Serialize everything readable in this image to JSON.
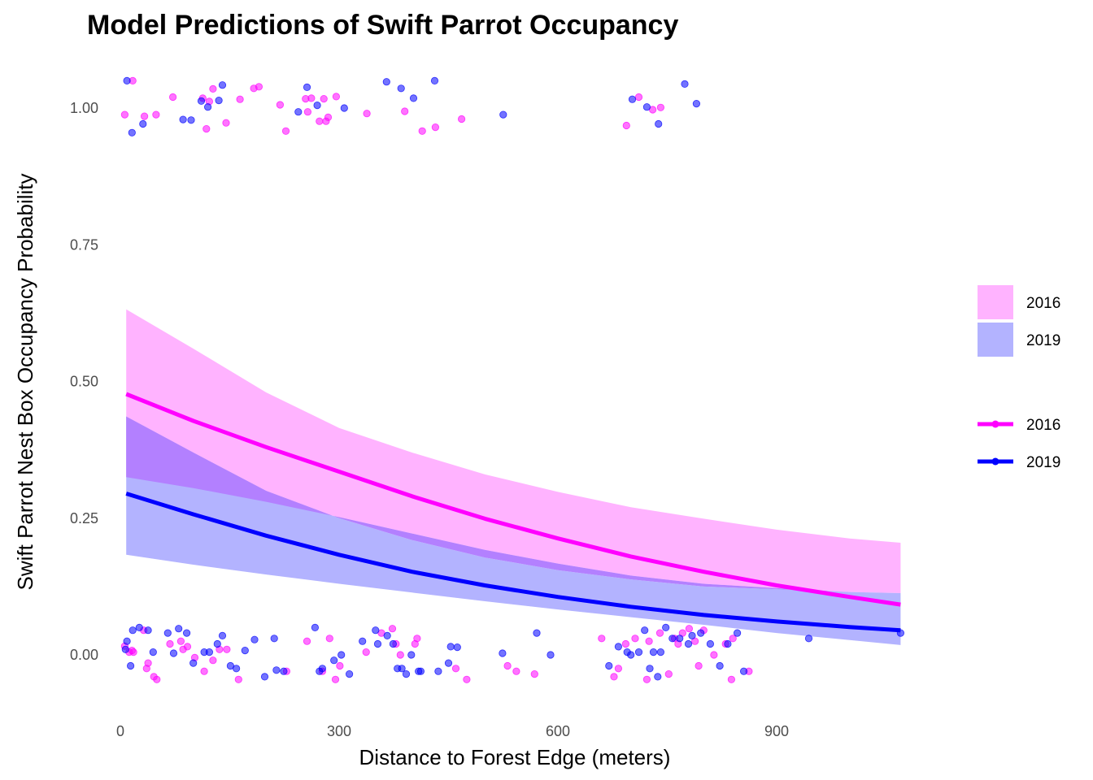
{
  "chart_data": {
    "type": "line",
    "title": "Model Predictions of Swift Parrot Occupancy",
    "xlabel": "Distance to Forest Edge (meters)",
    "ylabel": "Swift Parrot Nest Box Occupancy Probability",
    "xlim": [
      -10,
      1085
    ],
    "ylim": [
      -0.1,
      1.08
    ],
    "x_ticks": [
      0,
      300,
      600,
      900
    ],
    "x_tick_labels": [
      "0",
      "300",
      "600",
      "900"
    ],
    "y_ticks": [
      0,
      0.25,
      0.5,
      0.75,
      1.0
    ],
    "y_tick_labels": [
      "0.00",
      "0.25",
      "0.50",
      "0.75",
      "1.00"
    ],
    "grid": false,
    "legend_position": "right",
    "colors": {
      "2016_line": "#ff00ff",
      "2019_line": "#0000ff",
      "2016_band": "#ffb3ff",
      "2019_band": "#b3b3ff",
      "overlap_band": "#b380ff"
    },
    "legend": {
      "band_items": [
        {
          "label": "2016",
          "color": "#ffb3ff"
        },
        {
          "label": "2019",
          "color": "#b3b3ff"
        }
      ],
      "line_items": [
        {
          "label": "2016",
          "color": "#ff00ff"
        },
        {
          "label": "2019",
          "color": "#0000ff"
        }
      ]
    },
    "series": [
      {
        "name": "2016",
        "x": [
          8,
          100,
          200,
          300,
          400,
          500,
          600,
          700,
          800,
          900,
          1000,
          1070
        ],
        "y": [
          0.477,
          0.428,
          0.38,
          0.335,
          0.29,
          0.249,
          0.213,
          0.18,
          0.152,
          0.127,
          0.106,
          0.092
        ],
        "lower": [
          0.325,
          0.305,
          0.28,
          0.252,
          0.222,
          0.192,
          0.167,
          0.145,
          0.13,
          0.122,
          0.115,
          0.113
        ],
        "upper": [
          0.632,
          0.56,
          0.48,
          0.415,
          0.37,
          0.33,
          0.298,
          0.27,
          0.249,
          0.229,
          0.213,
          0.205
        ]
      },
      {
        "name": "2019",
        "x": [
          8,
          100,
          200,
          300,
          400,
          500,
          600,
          700,
          800,
          900,
          1000,
          1070
        ],
        "y": [
          0.295,
          0.257,
          0.218,
          0.183,
          0.152,
          0.127,
          0.106,
          0.088,
          0.073,
          0.061,
          0.051,
          0.045
        ],
        "lower": [
          0.183,
          0.165,
          0.147,
          0.13,
          0.114,
          0.098,
          0.083,
          0.069,
          0.055,
          0.04,
          0.027,
          0.018
        ],
        "upper": [
          0.436,
          0.37,
          0.3,
          0.25,
          0.21,
          0.178,
          0.155,
          0.138,
          0.125,
          0.12,
          0.115,
          0.113
        ]
      }
    ],
    "points": [
      {
        "year": "2016",
        "x": [
          6,
          17,
          33,
          49,
          72,
          113,
          118,
          122,
          127,
          145,
          164,
          183,
          190,
          219,
          227,
          254,
          257,
          262,
          273,
          279,
          282,
          285,
          296,
          338,
          390,
          414,
          432,
          468,
          694,
          711,
          730,
          741
        ],
        "y": [
          0.988,
          1.05,
          0.985,
          0.988,
          1.02,
          1.018,
          0.962,
          1.012,
          1.035,
          0.973,
          1.016,
          1.036,
          1.039,
          1.006,
          0.958,
          1.017,
          0.993,
          1.018,
          0.976,
          1.017,
          0.976,
          0.983,
          1.021,
          0.99,
          0.994,
          0.958,
          0.965,
          0.98,
          0.968,
          1.02,
          0.997,
          1.001
        ]
      },
      {
        "year": "2019",
        "x": [
          9,
          16,
          31,
          86,
          97,
          111,
          120,
          135,
          140,
          244,
          256,
          270,
          307,
          365,
          385,
          402,
          431,
          525,
          702,
          722,
          738,
          774,
          790
        ],
        "y": [
          1.05,
          0.955,
          0.971,
          0.979,
          0.978,
          1.013,
          1.002,
          1.014,
          1.042,
          0.993,
          1.038,
          1.005,
          1.0,
          1.048,
          1.036,
          1.018,
          1.05,
          0.988,
          1.016,
          1.002,
          0.971,
          1.044,
          1.008
        ]
      },
      {
        "year": "2016",
        "x": [
          6,
          12,
          16,
          18,
          32,
          36,
          38,
          46,
          50,
          68,
          83,
          86,
          92,
          102,
          115,
          127,
          136,
          146,
          162,
          228,
          256,
          277,
          287,
          295,
          301,
          337,
          358,
          373,
          378,
          384,
          404,
          407,
          460,
          475,
          531,
          543,
          568,
          660,
          677,
          683,
          693,
          706,
          722,
          725,
          740,
          752,
          760,
          765,
          771,
          780,
          788,
          793,
          800,
          814,
          830,
          838,
          840,
          862
        ],
        "y": [
          0.016,
          0.005,
          0.008,
          0.005,
          0.045,
          -0.025,
          -0.015,
          -0.04,
          -0.045,
          0.02,
          0.025,
          0.01,
          0.015,
          -0.005,
          -0.03,
          -0.01,
          0.01,
          0.01,
          -0.045,
          -0.03,
          0.025,
          -0.03,
          0.03,
          -0.045,
          -0.02,
          0.005,
          0.04,
          0.048,
          0.02,
          0.0,
          0.02,
          0.03,
          -0.025,
          -0.045,
          -0.02,
          -0.03,
          -0.035,
          0.03,
          -0.04,
          -0.025,
          0.02,
          0.03,
          -0.045,
          0.025,
          0.04,
          -0.035,
          0.03,
          0.02,
          0.04,
          0.048,
          0.025,
          -0.02,
          0.045,
          0.0,
          0.02,
          -0.045,
          0.03,
          -0.03
        ]
      },
      {
        "year": "2019",
        "x": [
          7,
          9,
          14,
          17,
          26,
          38,
          45,
          65,
          73,
          80,
          91,
          100,
          115,
          122,
          133,
          140,
          151,
          159,
          171,
          184,
          198,
          211,
          214,
          224,
          267,
          273,
          277,
          293,
          303,
          314,
          332,
          350,
          353,
          366,
          374,
          380,
          386,
          392,
          399,
          409,
          412,
          436,
          450,
          453,
          462,
          524,
          571,
          590,
          670,
          683,
          695,
          700,
          711,
          719,
          726,
          731,
          737,
          741,
          748,
          757,
          767,
          779,
          784,
          796,
          809,
          822,
          833,
          846,
          855,
          944,
          1070
        ],
        "y": [
          0.01,
          0.025,
          -0.02,
          0.045,
          0.05,
          0.045,
          0.005,
          0.04,
          0.003,
          0.048,
          0.04,
          -0.015,
          0.005,
          0.005,
          0.02,
          0.035,
          -0.02,
          -0.025,
          0.008,
          0.028,
          -0.04,
          0.03,
          -0.028,
          -0.03,
          0.05,
          -0.03,
          -0.025,
          -0.01,
          0.0,
          -0.035,
          0.025,
          0.045,
          0.02,
          0.035,
          0.02,
          -0.025,
          -0.025,
          -0.035,
          0.0,
          -0.03,
          -0.03,
          -0.03,
          -0.015,
          0.015,
          0.014,
          0.003,
          0.04,
          0.0,
          -0.02,
          0.015,
          0.005,
          0.0,
          0.005,
          0.045,
          -0.025,
          0.005,
          -0.04,
          0.005,
          0.05,
          0.03,
          0.03,
          0.02,
          0.035,
          0.04,
          0.02,
          -0.02,
          0.02,
          0.04,
          -0.03,
          0.03,
          0.04
        ]
      }
    ]
  }
}
